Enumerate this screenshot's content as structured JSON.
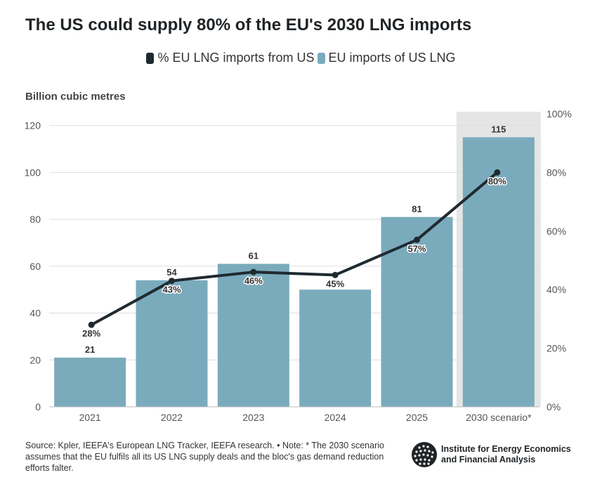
{
  "title": "The US could supply 80% of the EU's 2030 LNG imports",
  "legend": {
    "line_label": "% EU LNG imports from US",
    "bar_label": "EU imports of US LNG"
  },
  "y_unit_label": "Billion cubic metres",
  "chart_data": {
    "type": "bar",
    "categories": [
      "2021",
      "2022",
      "2023",
      "2024",
      "2025",
      "2030 scenario*"
    ],
    "series": [
      {
        "name": "EU imports of US LNG",
        "type": "bar",
        "axis": "left",
        "values": [
          21,
          54,
          61,
          50,
          81,
          115
        ],
        "labels": [
          "21",
          "54",
          "61",
          "",
          "81",
          "115"
        ]
      },
      {
        "name": "% EU LNG imports from US",
        "type": "line",
        "axis": "right",
        "values": [
          28,
          43,
          46,
          45,
          57,
          80
        ],
        "labels": [
          "28%",
          "43%",
          "46%",
          "45%",
          "57%",
          "80%"
        ]
      }
    ],
    "ylim": [
      0,
      125
    ],
    "y_ticks": [
      "0",
      "20",
      "40",
      "60",
      "80",
      "100",
      "120"
    ],
    "y2lim": [
      0,
      100
    ],
    "y2_ticks": [
      "0%",
      "20%",
      "40%",
      "60%",
      "80%",
      "100%"
    ],
    "highlighted_category": "2030 scenario*",
    "colors": {
      "bar": "#7aabbc",
      "line": "#1f2a30",
      "highlight_band": "#e5e5e5",
      "grid": "#dddddd"
    },
    "grid": true,
    "legend_position": "top"
  },
  "footer": {
    "source": "Source: Kpler, IEEFA's European LNG Tracker, IEEFA research. • Note: * The 2030 scenario assumes that the EU fulfils all its US LNG supply deals and the bloc's gas demand reduction efforts falter.",
    "org_line1": "Institute for Energy Economics",
    "org_line2": "and Financial Analysis",
    "logo_icon": "globe-icon"
  }
}
